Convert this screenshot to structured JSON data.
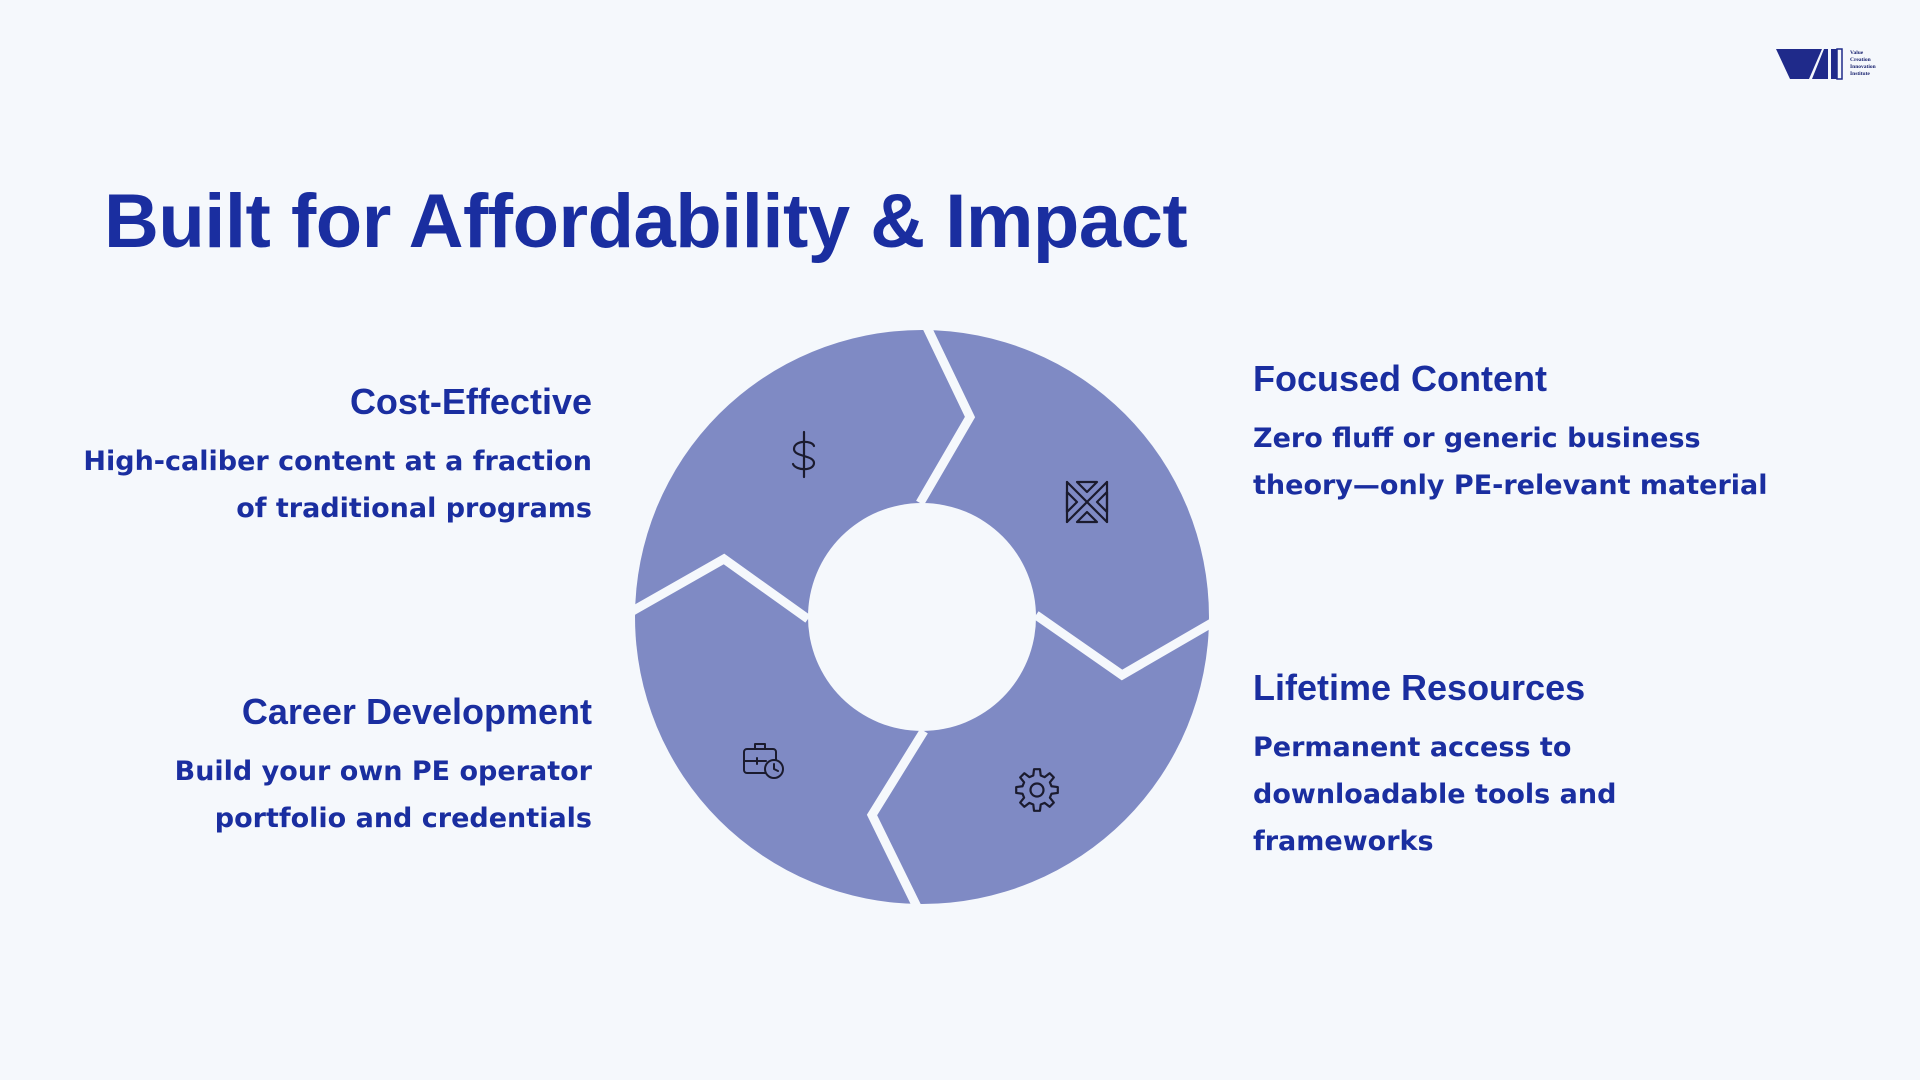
{
  "logo": {
    "name_lines": [
      "Value",
      "Creation",
      "Innovation",
      "Institute"
    ],
    "color": "#1f2a8a"
  },
  "title": "Built for Affordability & Impact",
  "features": {
    "cost_effective": {
      "title": "Cost-Effective",
      "description_lines": [
        "High-caliber content at a fraction",
        "of traditional programs"
      ],
      "icon": "dollar-icon"
    },
    "focused_content": {
      "title": "Focused Content",
      "description_lines": [
        "Zero fluff or generic business",
        "theory—only PE-relevant material"
      ],
      "icon": "crossed-arrows-icon"
    },
    "lifetime_resources": {
      "title": "Lifetime Resources",
      "description_lines": [
        "Permanent access to",
        "downloadable tools and",
        "frameworks"
      ],
      "icon": "gear-icon"
    },
    "career_development": {
      "title": "Career Development",
      "description_lines": [
        "Build your own PE operator",
        "portfolio and credentials"
      ],
      "icon": "briefcase-clock-icon"
    }
  },
  "colors": {
    "background": "#f5f8fc",
    "accent": "#1a2ea0",
    "segment_fill": "#7f8ac4",
    "icon_stroke": "#1b1b2e"
  }
}
